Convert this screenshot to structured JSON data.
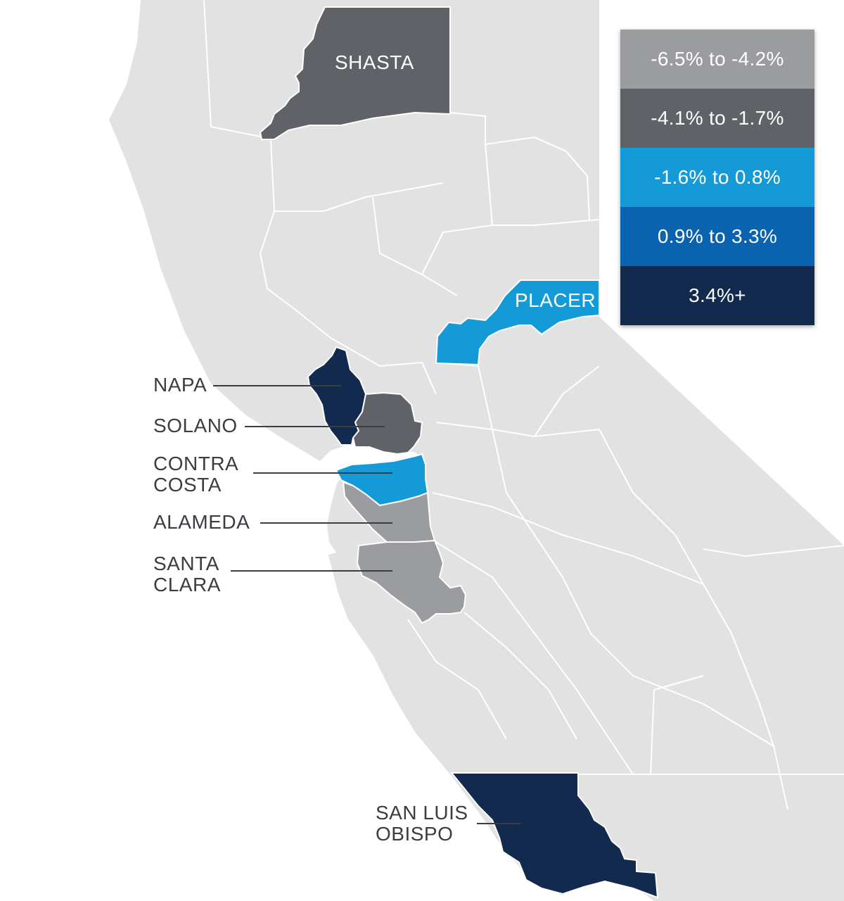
{
  "colors": {
    "background_land": "#e2e2e3",
    "border": "#ffffff",
    "ocean": "#ffffff",
    "bin_1": "#9a9c9f",
    "bin_2": "#5f6368",
    "bin_3": "#149bd7",
    "bin_4": "#0a63ae",
    "bin_5": "#122a4d"
  },
  "legend": [
    {
      "label": "-6.5% to -4.2%",
      "color": "#9a9c9f"
    },
    {
      "label": "-4.1% to -1.7%",
      "color": "#5f6368"
    },
    {
      "label": "-1.6% to 0.8%",
      "color": "#149bd7"
    },
    {
      "label": "0.9% to 3.3%",
      "color": "#0a63ae"
    },
    {
      "label": "3.4%+",
      "color": "#122a4d"
    }
  ],
  "counties": {
    "shasta": {
      "name": "SHASTA",
      "bin": "-4.1% to -1.7%"
    },
    "placer": {
      "name": "PLACER",
      "bin": "-1.6% to 0.8%"
    },
    "napa": {
      "name": "NAPA",
      "bin": "3.4%+"
    },
    "solano": {
      "name": "SOLANO",
      "bin": "-4.1% to -1.7%"
    },
    "contra_costa": {
      "name_line1": "CONTRA",
      "name_line2": "COSTA",
      "bin": "-1.6% to 0.8%"
    },
    "alameda": {
      "name": "ALAMEDA",
      "bin": "-6.5% to -4.2%"
    },
    "santa_clara": {
      "name_line1": "SANTA",
      "name_line2": "CLARA",
      "bin": "-6.5% to -4.2%"
    },
    "san_luis_obispo": {
      "name_line1": "SAN LUIS",
      "name_line2": "OBISPO",
      "bin": "3.4%+"
    }
  }
}
